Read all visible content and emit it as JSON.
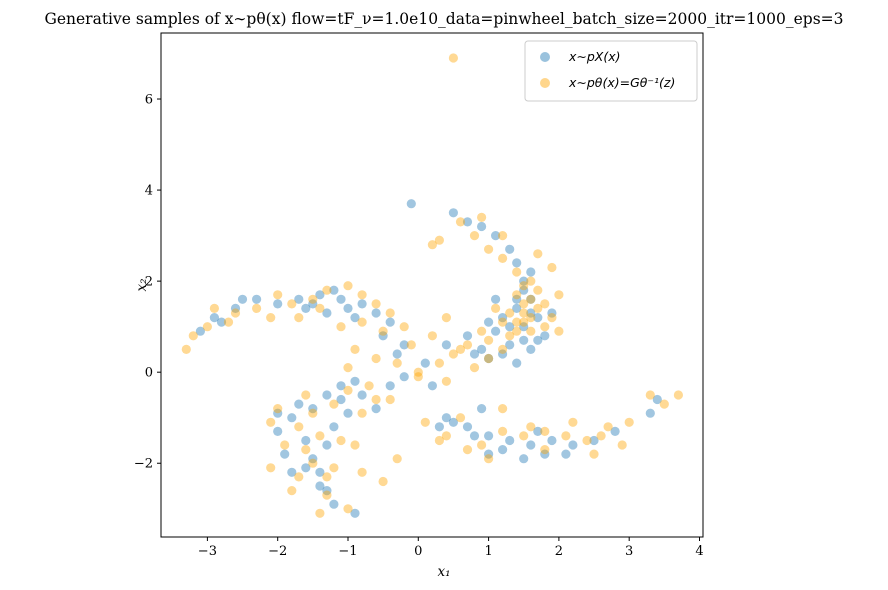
{
  "chart_data": {
    "type": "scatter",
    "title": "Generative samples of  x∼pθ(x) flow=tF_ν=1.0e10_data=pinwheel_batch_size=2000_itr=1000_eps=3",
    "xlabel": "x₁",
    "ylabel": "x₂",
    "xlim": [
      -3.66,
      4.05
    ],
    "ylim": [
      -3.62,
      7.45
    ],
    "xticks": [
      -3,
      -2,
      -1,
      0,
      1,
      2,
      3,
      4
    ],
    "yticks": [
      -2,
      0,
      2,
      4,
      6
    ],
    "xtick_labels": [
      "−3",
      "−2",
      "−1",
      "0",
      "1",
      "2",
      "3",
      "4"
    ],
    "ytick_labels": [
      "−2",
      "0",
      "2",
      "4",
      "6"
    ],
    "grid": false,
    "legend_position": "top-right",
    "series": [
      {
        "name": "x∼pX(x)",
        "color": "#1f77b4",
        "points": [
          [
            -1.2,
            -2.9
          ],
          [
            -0.9,
            -3.1
          ],
          [
            -1.4,
            -2.5
          ],
          [
            -1.6,
            -2.1
          ],
          [
            -1.9,
            -1.8
          ],
          [
            -2.0,
            -1.3
          ],
          [
            -1.8,
            -1.0
          ],
          [
            -1.5,
            -0.8
          ],
          [
            -1.3,
            -0.5
          ],
          [
            -1.1,
            -0.3
          ],
          [
            -0.9,
            -0.2
          ],
          [
            -1.0,
            -0.9
          ],
          [
            -1.2,
            -1.2
          ],
          [
            -1.6,
            -1.5
          ],
          [
            -1.4,
            -2.2
          ],
          [
            -1.7,
            -0.7
          ],
          [
            -0.8,
            -0.5
          ],
          [
            -0.6,
            -0.8
          ],
          [
            -1.3,
            -2.6
          ],
          [
            -1.5,
            -1.9
          ],
          [
            -1.1,
            -0.6
          ],
          [
            -1.8,
            -2.2
          ],
          [
            -2.0,
            -0.9
          ],
          [
            -1.3,
            -1.6
          ],
          [
            -0.4,
            -0.3
          ],
          [
            -0.2,
            -0.1
          ],
          [
            0.2,
            -0.3
          ],
          [
            0.4,
            -1.0
          ],
          [
            0.7,
            -1.2
          ],
          [
            1.0,
            -1.4
          ],
          [
            1.3,
            -1.5
          ],
          [
            1.6,
            -1.6
          ],
          [
            1.9,
            -1.5
          ],
          [
            2.2,
            -1.6
          ],
          [
            2.5,
            -1.5
          ],
          [
            2.8,
            -1.3
          ],
          [
            3.3,
            -0.9
          ],
          [
            3.4,
            -0.6
          ],
          [
            1.8,
            -1.8
          ],
          [
            1.2,
            -1.7
          ],
          [
            0.8,
            -1.4
          ],
          [
            0.5,
            -1.1
          ],
          [
            1.5,
            -1.9
          ],
          [
            2.1,
            -1.8
          ],
          [
            1.0,
            -1.8
          ],
          [
            0.3,
            -1.2
          ],
          [
            0.9,
            -0.8
          ],
          [
            1.7,
            -1.3
          ],
          [
            -3.1,
            0.9
          ],
          [
            -2.9,
            1.2
          ],
          [
            -2.6,
            1.4
          ],
          [
            -2.3,
            1.6
          ],
          [
            -2.0,
            1.5
          ],
          [
            -1.7,
            1.6
          ],
          [
            -1.4,
            1.7
          ],
          [
            -1.1,
            1.6
          ],
          [
            -0.8,
            1.5
          ],
          [
            -0.6,
            1.3
          ],
          [
            -0.4,
            1.1
          ],
          [
            -1.3,
            1.3
          ],
          [
            -1.6,
            1.4
          ],
          [
            -0.9,
            1.2
          ],
          [
            -0.5,
            0.8
          ],
          [
            -0.2,
            0.6
          ],
          [
            -2.8,
            1.1
          ],
          [
            -2.5,
            1.6
          ],
          [
            -1.2,
            1.8
          ],
          [
            -1.0,
            1.4
          ],
          [
            -1.5,
            1.5
          ],
          [
            -0.3,
            0.4
          ],
          [
            0.1,
            0.2
          ],
          [
            0.4,
            0.6
          ],
          [
            0.7,
            0.8
          ],
          [
            0.9,
            0.5
          ],
          [
            1.1,
            0.9
          ],
          [
            1.2,
            0.4
          ],
          [
            1.3,
            0.6
          ],
          [
            1.5,
            1.0
          ],
          [
            1.4,
            1.4
          ],
          [
            1.6,
            1.6
          ],
          [
            1.5,
            2.0
          ],
          [
            1.4,
            2.4
          ],
          [
            1.3,
            2.7
          ],
          [
            1.1,
            3.0
          ],
          [
            0.9,
            3.2
          ],
          [
            0.7,
            3.3
          ],
          [
            0.5,
            3.5
          ],
          [
            -0.1,
            3.7
          ],
          [
            1.7,
            1.2
          ],
          [
            1.8,
            0.8
          ],
          [
            1.6,
            0.5
          ],
          [
            1.4,
            0.2
          ],
          [
            1.0,
            0.3
          ],
          [
            1.2,
            1.2
          ],
          [
            1.5,
            1.8
          ],
          [
            1.6,
            2.2
          ],
          [
            1.3,
            1.0
          ],
          [
            1.7,
            0.7
          ],
          [
            1.9,
            1.3
          ],
          [
            1.1,
            1.6
          ],
          [
            0.8,
            0.4
          ],
          [
            1.0,
            1.1
          ],
          [
            1.5,
            0.7
          ],
          [
            1.4,
            1.6
          ],
          [
            1.6,
            1.3
          ]
        ]
      },
      {
        "name": "x∼pθ(x)=Gθ⁻¹(z)",
        "color": "#ffa500",
        "points": [
          [
            -1.4,
            -3.1
          ],
          [
            -1.0,
            -3.0
          ],
          [
            -1.3,
            -2.7
          ],
          [
            -1.7,
            -2.3
          ],
          [
            -2.1,
            -2.1
          ],
          [
            -1.9,
            -1.6
          ],
          [
            -2.1,
            -1.1
          ],
          [
            -1.7,
            -1.2
          ],
          [
            -1.5,
            -0.9
          ],
          [
            -1.2,
            -0.7
          ],
          [
            -1.0,
            -0.4
          ],
          [
            -0.8,
            -0.9
          ],
          [
            -1.1,
            -1.5
          ],
          [
            -1.5,
            -2.0
          ],
          [
            -1.8,
            -2.6
          ],
          [
            -0.5,
            -2.4
          ],
          [
            -0.8,
            -2.2
          ],
          [
            -0.9,
            -1.6
          ],
          [
            -0.6,
            -0.6
          ],
          [
            -0.3,
            -1.9
          ],
          [
            -2.0,
            -0.8
          ],
          [
            -1.6,
            -1.7
          ],
          [
            -1.3,
            -2.3
          ],
          [
            -1.4,
            -1.4
          ],
          [
            0.1,
            -1.1
          ],
          [
            0.4,
            -1.4
          ],
          [
            0.6,
            -1.0
          ],
          [
            0.9,
            -1.6
          ],
          [
            1.2,
            -1.3
          ],
          [
            1.5,
            -1.4
          ],
          [
            1.8,
            -1.7
          ],
          [
            2.1,
            -1.4
          ],
          [
            2.4,
            -1.5
          ],
          [
            2.7,
            -1.2
          ],
          [
            3.0,
            -1.1
          ],
          [
            3.3,
            -0.5
          ],
          [
            3.7,
            -0.5
          ],
          [
            3.5,
            -0.7
          ],
          [
            2.9,
            -1.6
          ],
          [
            2.5,
            -1.8
          ],
          [
            2.2,
            -1.1
          ],
          [
            1.6,
            -1.2
          ],
          [
            1.2,
            -0.8
          ],
          [
            0.7,
            -1.7
          ],
          [
            0.3,
            -1.5
          ],
          [
            1.0,
            -1.9
          ],
          [
            1.8,
            -1.3
          ],
          [
            2.6,
            -1.4
          ],
          [
            -3.3,
            0.5
          ],
          [
            -3.2,
            0.8
          ],
          [
            -3.0,
            1.0
          ],
          [
            -2.9,
            1.4
          ],
          [
            -2.6,
            1.3
          ],
          [
            -2.3,
            1.4
          ],
          [
            -2.0,
            1.7
          ],
          [
            -1.8,
            1.5
          ],
          [
            -1.5,
            1.6
          ],
          [
            -1.3,
            1.8
          ],
          [
            -1.0,
            1.9
          ],
          [
            -0.8,
            1.7
          ],
          [
            -0.6,
            1.5
          ],
          [
            -0.4,
            1.3
          ],
          [
            -0.2,
            1.0
          ],
          [
            -0.1,
            0.6
          ],
          [
            -0.5,
            0.9
          ],
          [
            -0.8,
            1.1
          ],
          [
            -1.1,
            1.0
          ],
          [
            -1.4,
            1.4
          ],
          [
            -1.7,
            1.2
          ],
          [
            -2.1,
            1.2
          ],
          [
            -2.7,
            1.1
          ],
          [
            -0.3,
            0.2
          ],
          [
            0.0,
            0.0
          ],
          [
            -0.9,
            0.5
          ],
          [
            -0.6,
            0.3
          ],
          [
            -1.0,
            0.1
          ],
          [
            0.0,
            -0.1
          ],
          [
            0.3,
            0.2
          ],
          [
            0.5,
            0.4
          ],
          [
            0.7,
            0.6
          ],
          [
            0.9,
            0.9
          ],
          [
            1.0,
            0.7
          ],
          [
            1.2,
            0.5
          ],
          [
            1.3,
            0.8
          ],
          [
            1.4,
            1.1
          ],
          [
            1.5,
            1.3
          ],
          [
            1.6,
            1.6
          ],
          [
            1.5,
            1.9
          ],
          [
            1.4,
            2.2
          ],
          [
            1.2,
            2.5
          ],
          [
            1.0,
            2.7
          ],
          [
            0.8,
            3.0
          ],
          [
            0.6,
            3.3
          ],
          [
            0.3,
            2.9
          ],
          [
            0.5,
            6.9
          ],
          [
            0.9,
            3.4
          ],
          [
            1.2,
            3.0
          ],
          [
            1.7,
            2.6
          ],
          [
            1.9,
            2.3
          ],
          [
            2.0,
            1.7
          ],
          [
            1.9,
            1.2
          ],
          [
            2.0,
            0.9
          ],
          [
            1.8,
            1.0
          ],
          [
            1.6,
            0.9
          ],
          [
            1.7,
            1.4
          ],
          [
            1.6,
            1.2
          ],
          [
            1.5,
            1.1
          ],
          [
            1.4,
            0.9
          ],
          [
            1.3,
            1.3
          ],
          [
            1.7,
            1.8
          ],
          [
            1.5,
            1.5
          ],
          [
            1.6,
            2.0
          ],
          [
            1.8,
            1.5
          ],
          [
            1.4,
            1.7
          ],
          [
            1.2,
            1.1
          ],
          [
            1.1,
            1.4
          ],
          [
            1.0,
            0.3
          ],
          [
            0.8,
            0.1
          ],
          [
            0.6,
            0.5
          ],
          [
            0.2,
            0.8
          ],
          [
            0.2,
            2.8
          ],
          [
            0.4,
            1.2
          ],
          [
            -0.4,
            -0.6
          ],
          [
            -0.7,
            -0.3
          ],
          [
            -1.2,
            -2.1
          ],
          [
            -1.6,
            -0.5
          ],
          [
            0.4,
            -0.2
          ]
        ]
      }
    ]
  },
  "legend": {
    "entries": [
      {
        "label": "x∼pX(x)",
        "color": "#1f77b4"
      },
      {
        "label": "x∼pθ(x)=Gθ⁻¹(z)",
        "color": "#ffa500"
      }
    ]
  }
}
